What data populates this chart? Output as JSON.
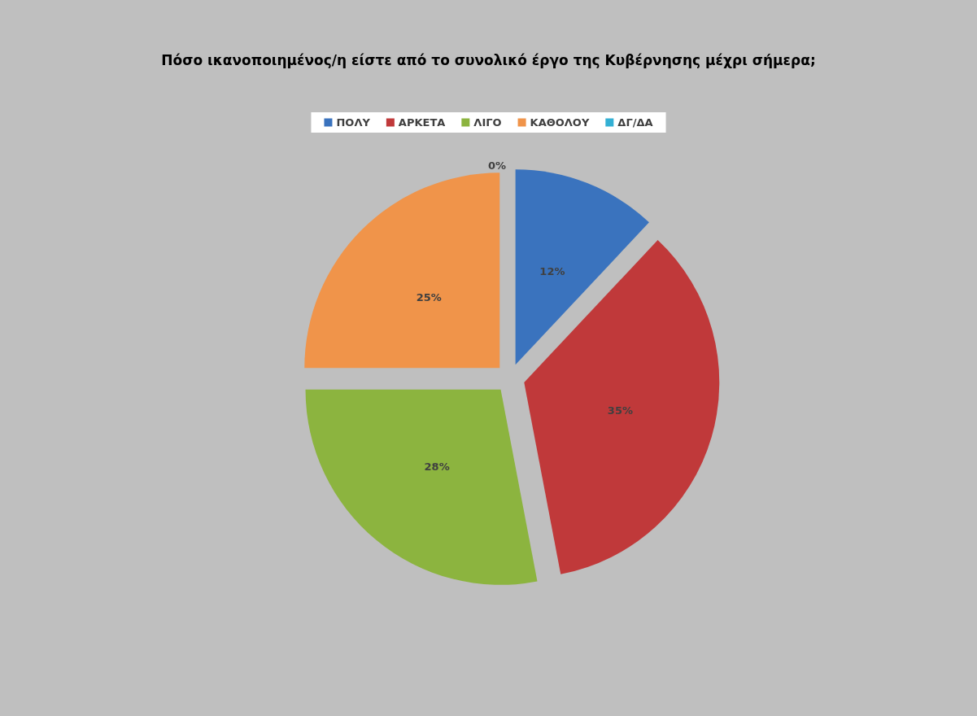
{
  "chart_data": {
    "type": "pie",
    "title": "Πόσο ικανοποιημένος/η είστε από το συνολικό έργο της Κυβέρνησης μέχρι σήμερα;",
    "categories": [
      "ΠΟΛΥ",
      "ΑΡΚΕΤΑ",
      "ΛΙΓΟ",
      "ΚΑΘΟΛΟΥ",
      "ΔΓ/ΔΑ"
    ],
    "values": [
      12,
      35,
      28,
      25,
      0
    ],
    "colors": [
      "#3a73be",
      "#c0393a",
      "#8cb43f",
      "#f0944a",
      "#33b0d4"
    ],
    "value_labels": [
      "12%",
      "35%",
      "28%",
      "25%",
      "0%"
    ],
    "legend": "top"
  }
}
